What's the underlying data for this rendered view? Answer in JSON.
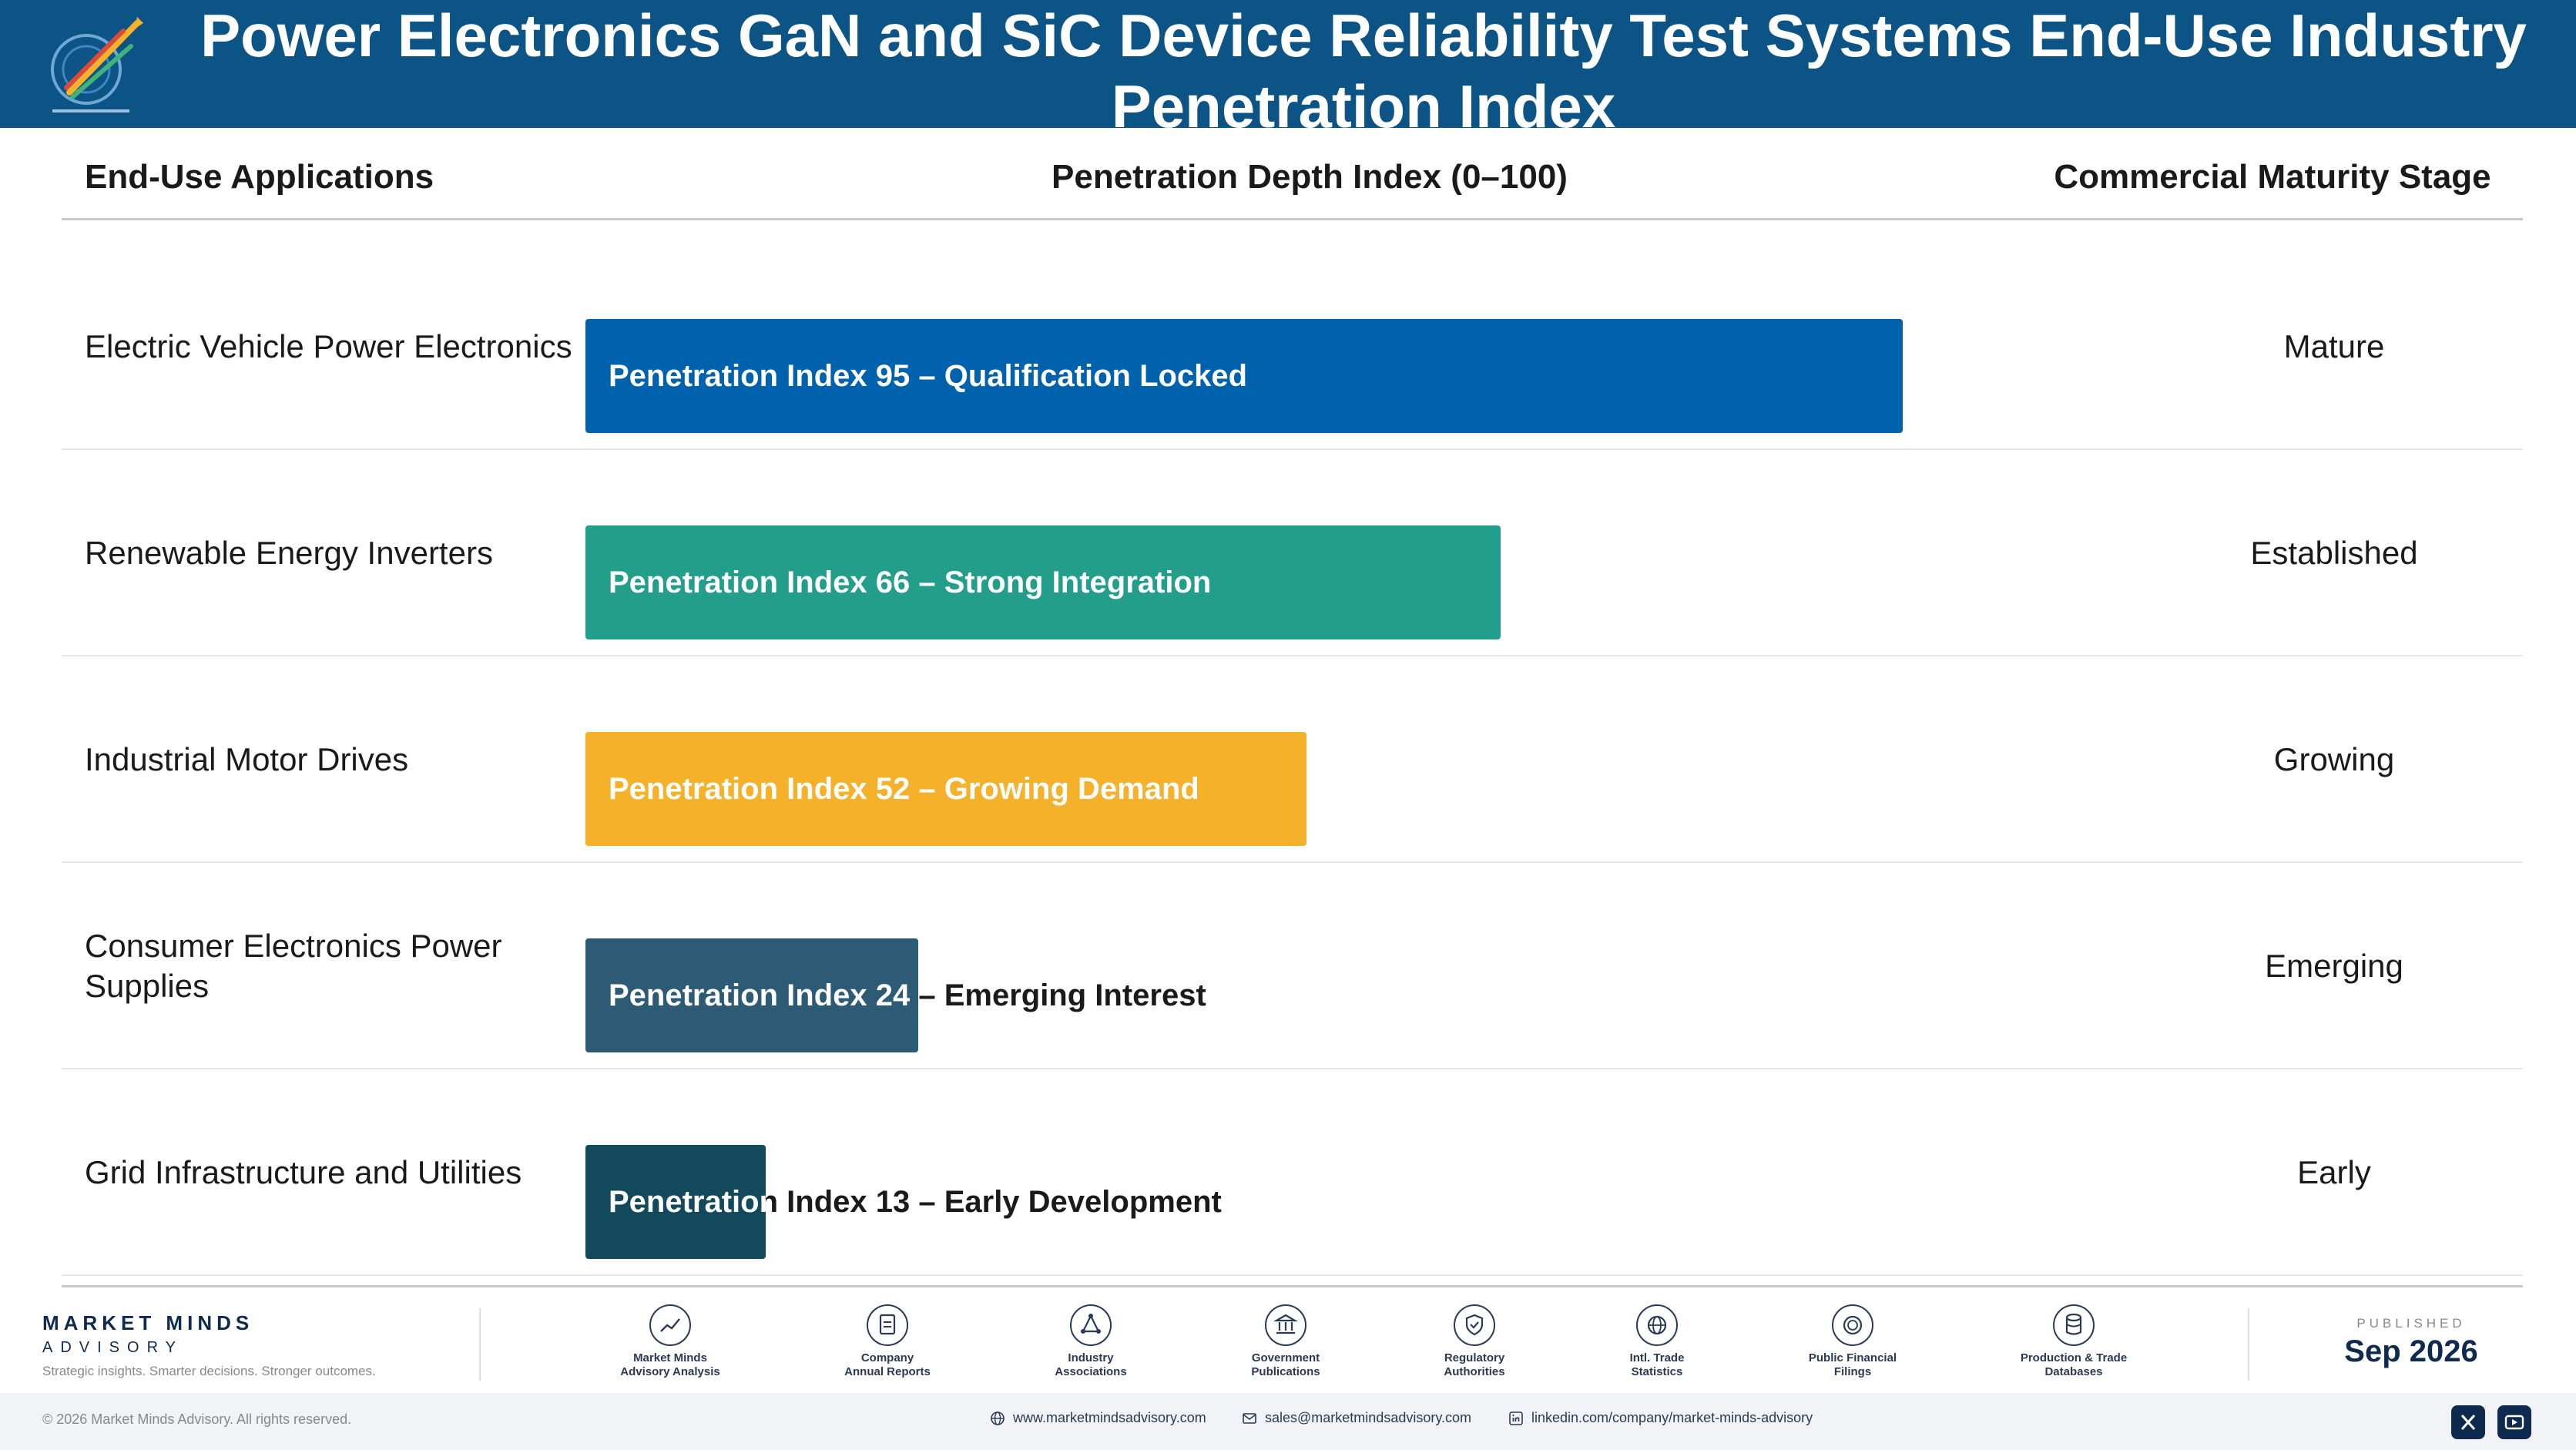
{
  "title": "Power Electronics GaN and SiC Device Reliability Test Systems End-Use Industry Penetration Index",
  "columns": {
    "application": "End-Use Applications",
    "depth": "Penetration Depth Index (0–100)",
    "stage": "Commercial Maturity Stage"
  },
  "colors": {
    "header": "#0c5485",
    "bars": [
      "#0061ad",
      "#229e8a",
      "#f5b12a",
      "#2d5a75",
      "#124a5c"
    ]
  },
  "chart_data": {
    "type": "bar",
    "orientation": "horizontal",
    "xlim": [
      0,
      100
    ],
    "categories": [
      "Electric Vehicle Power Electronics",
      "Renewable Energy Inverters",
      "Industrial Motor Drives",
      "Consumer Electronics Power Supplies",
      "Grid Infrastructure and Utilities"
    ],
    "values": [
      95,
      66,
      52,
      24,
      13
    ],
    "data_labels": [
      "Penetration Index 95 – Qualification Locked",
      "Penetration Index 66 – Strong Integration",
      "Penetration Index 52 – Growing Demand",
      "Penetration Index 24 – Emerging Interest",
      "Penetration Index 13 – Early Development"
    ],
    "stages": [
      "Mature",
      "Established",
      "Growing",
      "Emerging",
      "Early"
    ]
  },
  "footer": {
    "brand_name": "MARKET MINDS",
    "brand_sub": "ADVISORY",
    "tagline": "Strategic insights. Smarter decisions. Stronger outcomes.",
    "sources": [
      {
        "label": "Market Minds\nAdvisory Analysis",
        "icon": "trend-icon"
      },
      {
        "label": "Company\nAnnual Reports",
        "icon": "document-icon"
      },
      {
        "label": "Industry\nAssociations",
        "icon": "network-icon"
      },
      {
        "label": "Government\nPublications",
        "icon": "bank-icon"
      },
      {
        "label": "Regulatory\nAuthorities",
        "icon": "shield-icon"
      },
      {
        "label": "Intl. Trade\nStatistics",
        "icon": "globe-icon"
      },
      {
        "label": "Public Financial\nFilings",
        "icon": "coin-icon"
      },
      {
        "label": "Production & Trade\nDatabases",
        "icon": "database-icon"
      }
    ],
    "published_label": "PUBLISHED",
    "published_date": "Sep 2026",
    "copyright": "© 2026 Market Minds Advisory. All rights reserved.",
    "website": "www.marketmindsadvisory.com",
    "email": "sales@marketmindsadvisory.com",
    "linkedin": "linkedin.com/company/market-minds-advisory"
  }
}
